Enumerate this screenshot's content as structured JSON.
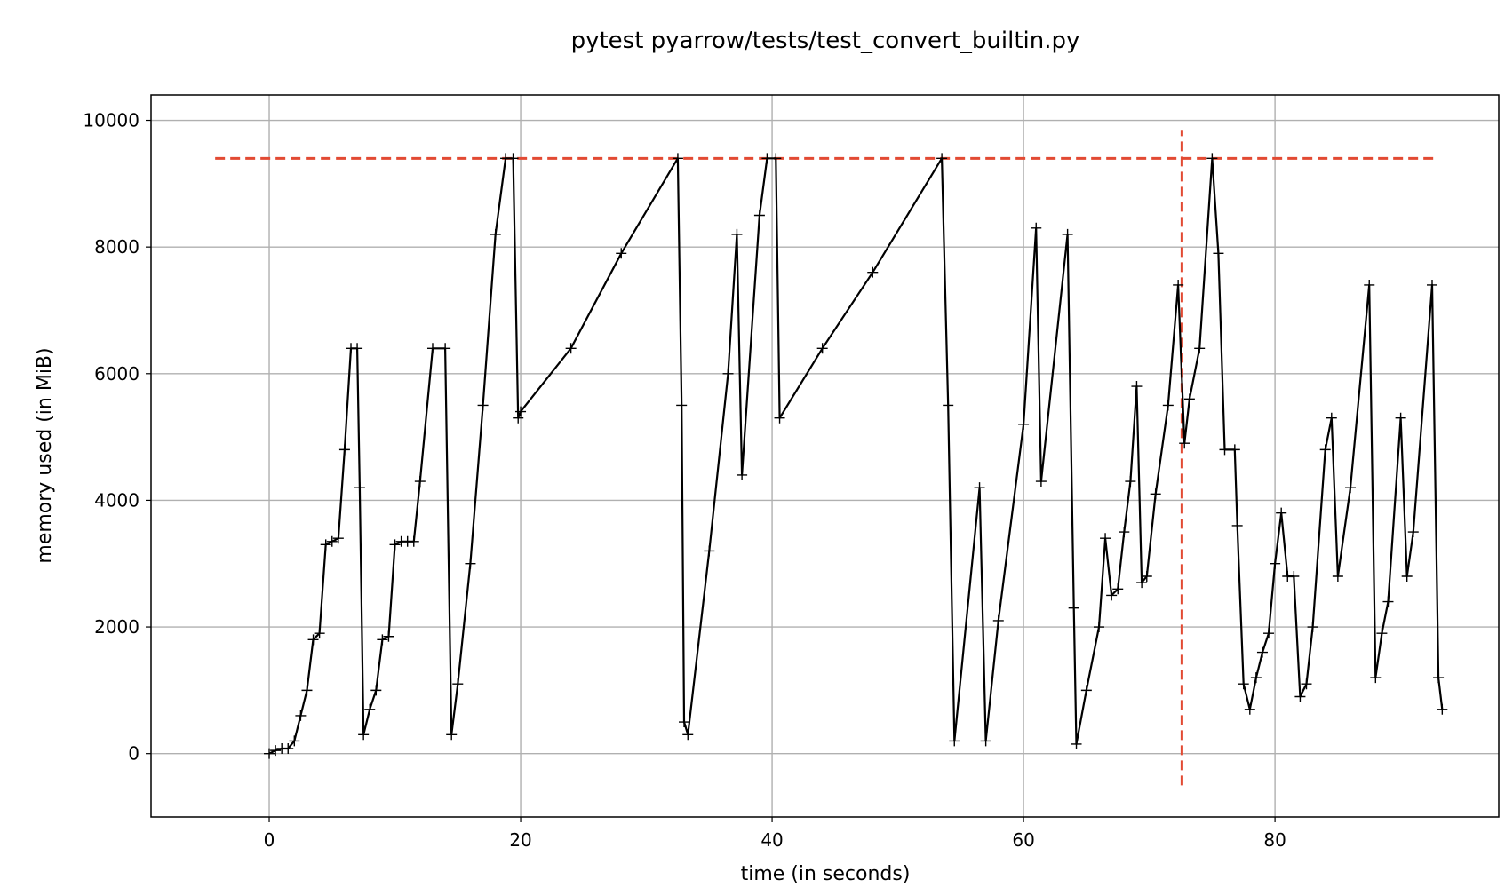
{
  "chart_data": {
    "type": "line",
    "title": "pytest pyarrow/tests/test_convert_builtin.py",
    "xlabel": "time (in seconds)",
    "ylabel": "memory used (in MiB)",
    "xlim": [
      -9.4,
      97.8
    ],
    "ylim": [
      -1000,
      10400
    ],
    "xticks": [
      0,
      20,
      40,
      60,
      80
    ],
    "xtick_labels": [
      "0",
      "20",
      "40",
      "60",
      "80"
    ],
    "yticks": [
      0,
      2000,
      4000,
      6000,
      8000,
      10000
    ],
    "ytick_labels": [
      "0",
      "2000",
      "4000",
      "6000",
      "8000",
      "10000"
    ],
    "grid": true,
    "marker": "+",
    "series": [
      {
        "color": "#000000",
        "points": [
          [
            0.0,
            0
          ],
          [
            0.5,
            50
          ],
          [
            1.0,
            80
          ],
          [
            1.5,
            80
          ],
          [
            2.0,
            200
          ],
          [
            2.5,
            600
          ],
          [
            3.0,
            1000
          ],
          [
            3.5,
            1800
          ],
          [
            4.0,
            1900
          ],
          [
            4.5,
            3300
          ],
          [
            5.0,
            3350
          ],
          [
            5.5,
            3400
          ],
          [
            6.0,
            4800
          ],
          [
            6.5,
            6400
          ],
          [
            7.0,
            6400
          ],
          [
            7.2,
            4200
          ],
          [
            7.5,
            300
          ],
          [
            8.0,
            700
          ],
          [
            8.5,
            1000
          ],
          [
            9.0,
            1800
          ],
          [
            9.5,
            1850
          ],
          [
            10.0,
            3300
          ],
          [
            10.5,
            3350
          ],
          [
            11.0,
            3350
          ],
          [
            11.5,
            3350
          ],
          [
            12.0,
            4300
          ],
          [
            13.0,
            6400
          ],
          [
            14.0,
            6400
          ],
          [
            14.5,
            300
          ],
          [
            15.0,
            1100
          ],
          [
            16.0,
            3000
          ],
          [
            17.0,
            5500
          ],
          [
            18.0,
            8200
          ],
          [
            18.8,
            9400
          ],
          [
            19.4,
            9400
          ],
          [
            19.8,
            5300
          ],
          [
            20.0,
            5400
          ],
          [
            24.0,
            6400
          ],
          [
            28.0,
            7900
          ],
          [
            32.5,
            9400
          ],
          [
            32.8,
            5500
          ],
          [
            33.0,
            500
          ],
          [
            33.3,
            300
          ],
          [
            35.0,
            3200
          ],
          [
            36.5,
            6000
          ],
          [
            37.2,
            8200
          ],
          [
            37.6,
            4400
          ],
          [
            39.0,
            8500
          ],
          [
            39.6,
            9400
          ],
          [
            40.3,
            9400
          ],
          [
            40.6,
            5300
          ],
          [
            44.0,
            6400
          ],
          [
            48.0,
            7600
          ],
          [
            53.5,
            9400
          ],
          [
            54.0,
            5500
          ],
          [
            54.5,
            200
          ],
          [
            56.5,
            4200
          ],
          [
            57.0,
            200
          ],
          [
            58.0,
            2100
          ],
          [
            60.0,
            5200
          ],
          [
            61.0,
            8300
          ],
          [
            61.4,
            4300
          ],
          [
            63.5,
            8200
          ],
          [
            64.0,
            2300
          ],
          [
            64.2,
            150
          ],
          [
            65.0,
            1000
          ],
          [
            66.0,
            2000
          ],
          [
            66.5,
            3400
          ],
          [
            67.0,
            2500
          ],
          [
            67.5,
            2600
          ],
          [
            68.0,
            3500
          ],
          [
            68.5,
            4300
          ],
          [
            69.0,
            5800
          ],
          [
            69.4,
            2700
          ],
          [
            69.8,
            2800
          ],
          [
            70.5,
            4100
          ],
          [
            71.5,
            5500
          ],
          [
            72.3,
            7400
          ],
          [
            72.8,
            4900
          ],
          [
            73.2,
            5600
          ],
          [
            74.0,
            6400
          ],
          [
            75.0,
            9400
          ],
          [
            75.5,
            7900
          ],
          [
            76.0,
            4800
          ],
          [
            76.8,
            4800
          ],
          [
            77.0,
            3600
          ],
          [
            77.5,
            1100
          ],
          [
            78.0,
            700
          ],
          [
            78.5,
            1200
          ],
          [
            79.0,
            1600
          ],
          [
            79.5,
            1900
          ],
          [
            80.0,
            3000
          ],
          [
            80.5,
            3800
          ],
          [
            81.0,
            2800
          ],
          [
            81.5,
            2800
          ],
          [
            82.0,
            900
          ],
          [
            82.5,
            1100
          ],
          [
            83.0,
            2000
          ],
          [
            84.0,
            4800
          ],
          [
            84.5,
            5300
          ],
          [
            85.0,
            2800
          ],
          [
            86.0,
            4200
          ],
          [
            87.5,
            7400
          ],
          [
            88.0,
            1200
          ],
          [
            88.5,
            1900
          ],
          [
            89.0,
            2400
          ],
          [
            90.0,
            5300
          ],
          [
            90.5,
            2800
          ],
          [
            91.0,
            3500
          ],
          [
            92.5,
            7400
          ],
          [
            93.0,
            1200
          ],
          [
            93.3,
            700
          ]
        ]
      }
    ],
    "max_line": {
      "y": 9400,
      "x_range": [
        -4.3,
        93.0
      ],
      "x_vertical": 72.6,
      "y_range": [
        -500,
        9850
      ],
      "color": "#e24a33",
      "style": "dashed"
    }
  }
}
